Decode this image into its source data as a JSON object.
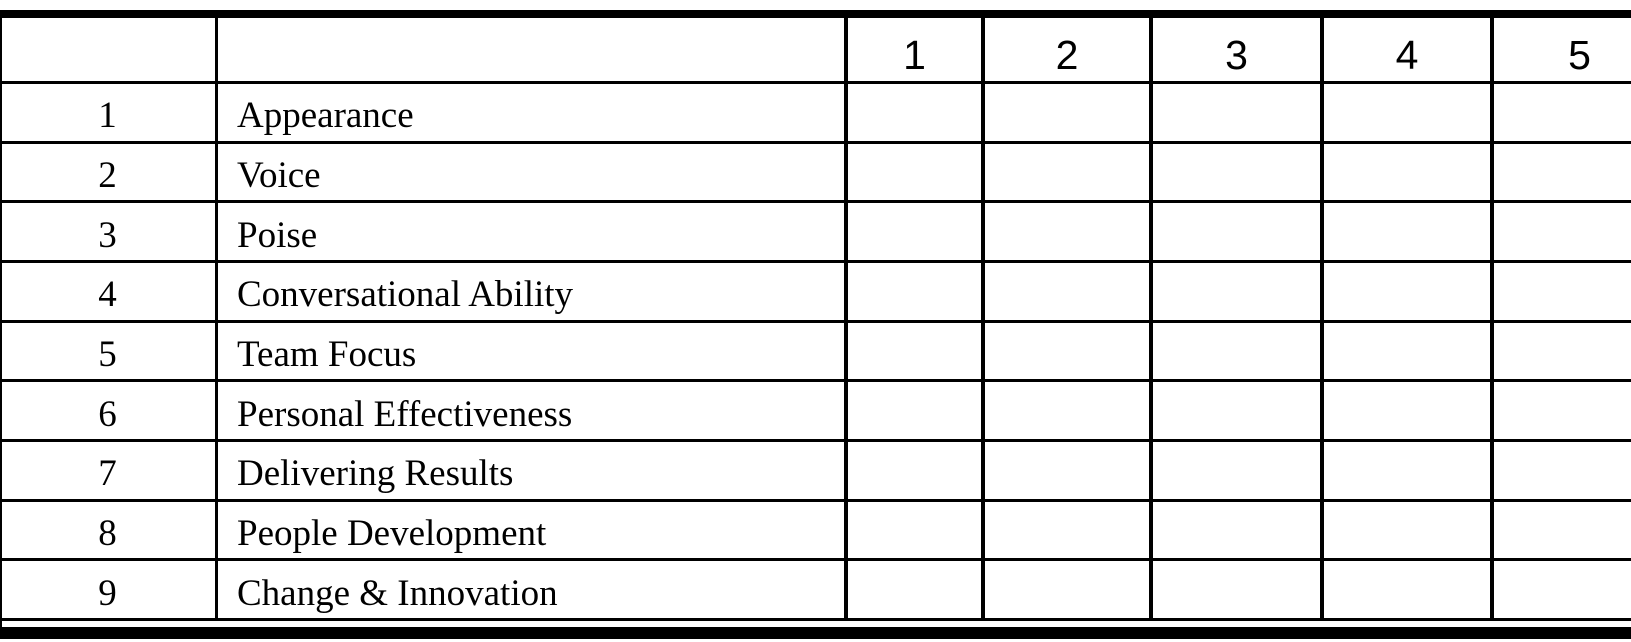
{
  "table": {
    "header": {
      "number_column": "",
      "criteria_column": "",
      "ratings": [
        "1",
        "2",
        "3",
        "4",
        "5"
      ]
    },
    "rows": [
      {
        "num": "1",
        "label": "Appearance"
      },
      {
        "num": "2",
        "label": "Voice"
      },
      {
        "num": "3",
        "label": "Poise"
      },
      {
        "num": "4",
        "label": "Conversational Ability"
      },
      {
        "num": "5",
        "label": "Team Focus"
      },
      {
        "num": "6",
        "label": "Personal Effectiveness"
      },
      {
        "num": "7",
        "label": "Delivering Results"
      },
      {
        "num": "8",
        "label": "People Development"
      },
      {
        "num": "9",
        "label": "Change & Innovation"
      }
    ],
    "colors": {
      "line": "#000000",
      "background": "#ffffff",
      "text": "#000000"
    }
  }
}
